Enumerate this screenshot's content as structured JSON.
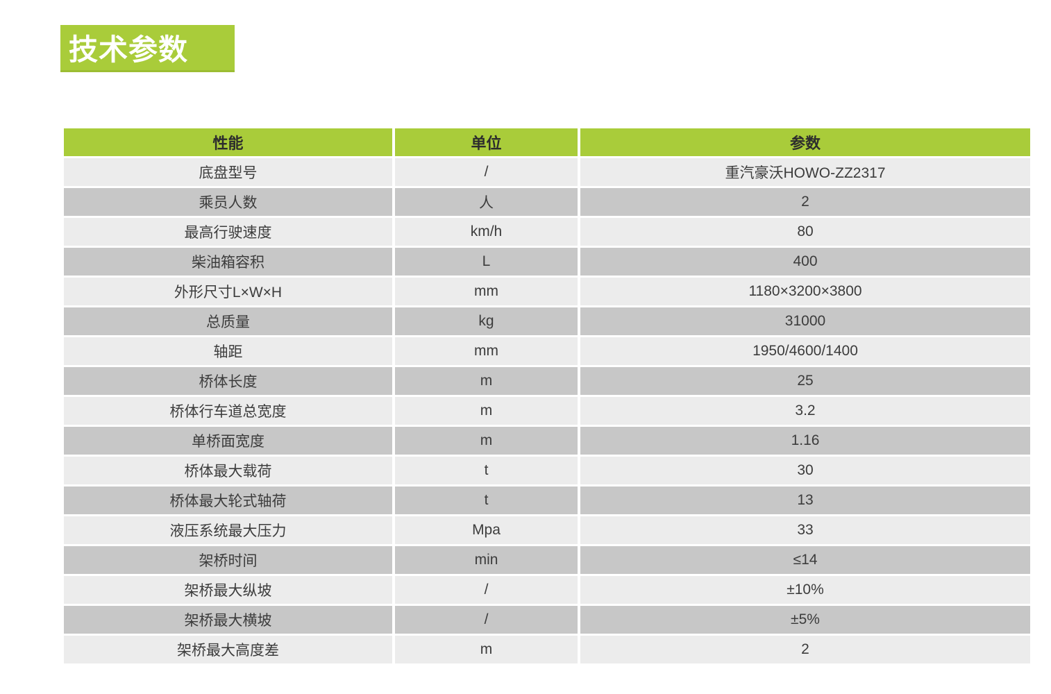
{
  "page_title": "技术参数",
  "colors": {
    "accent_green": "#a9cc3a",
    "row_light": "#ececec",
    "row_dark": "#c7c7c7",
    "header_text": "#2d2d2d",
    "cell_text": "#3c3c3c",
    "title_text": "#ffffff"
  },
  "table": {
    "headers": [
      "性能",
      "单位",
      "参数"
    ],
    "rows": [
      {
        "name": "底盘型号",
        "unit": "/",
        "value": "重汽豪沃HOWO-ZZ2317"
      },
      {
        "name": "乘员人数",
        "unit": "人",
        "value": "2"
      },
      {
        "name": "最高行驶速度",
        "unit": "km/h",
        "value": "80"
      },
      {
        "name": "柴油箱容积",
        "unit": "L",
        "value": "400"
      },
      {
        "name": "外形尺寸L×W×H",
        "unit": "mm",
        "value": "1180×3200×3800"
      },
      {
        "name": "总质量",
        "unit": "kg",
        "value": "31000"
      },
      {
        "name": "轴距",
        "unit": "mm",
        "value": "1950/4600/1400"
      },
      {
        "name": "桥体长度",
        "unit": "m",
        "value": "25"
      },
      {
        "name": "桥体行车道总宽度",
        "unit": "m",
        "value": "3.2"
      },
      {
        "name": "单桥面宽度",
        "unit": "m",
        "value": "1.16"
      },
      {
        "name": "桥体最大载荷",
        "unit": "t",
        "value": "30"
      },
      {
        "name": "桥体最大轮式轴荷",
        "unit": "t",
        "value": "13"
      },
      {
        "name": "液压系统最大压力",
        "unit": "Mpa",
        "value": "33"
      },
      {
        "name": "架桥时间",
        "unit": "min",
        "value": "≤14"
      },
      {
        "name": "架桥最大纵坡",
        "unit": "/",
        "value": "±10%"
      },
      {
        "name": "架桥最大横坡",
        "unit": "/",
        "value": "±5%"
      },
      {
        "name": "架桥最大高度差",
        "unit": "m",
        "value": "2"
      }
    ]
  }
}
